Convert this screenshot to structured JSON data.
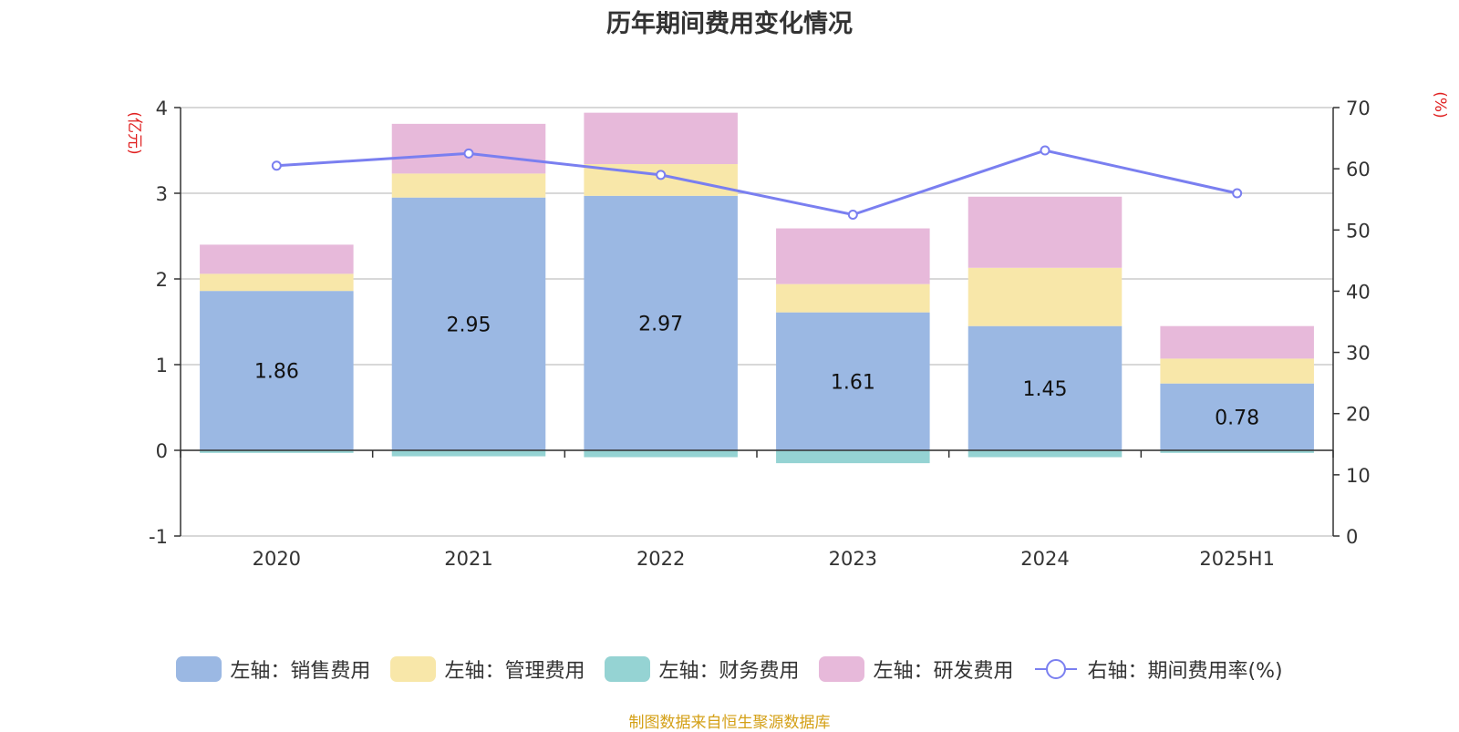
{
  "title": "历年期间费用变化情况",
  "source_note": "制图数据来自恒生聚源数据库",
  "colors": {
    "sales": "#9bb8e3",
    "admin": "#f8e7a9",
    "finance": "#95d3d3",
    "rnd": "#e7b9da",
    "rate": "#7a7ff0",
    "unit": "#e02020"
  },
  "chart_data": {
    "type": "bar",
    "stacked": true,
    "categories": [
      "2020",
      "2021",
      "2022",
      "2023",
      "2024",
      "2025H1"
    ],
    "left_axis": {
      "label": "(亿元)",
      "ylim": [
        -1,
        4
      ],
      "ticks": [
        "-1",
        "0",
        "1",
        "2",
        "3",
        "4"
      ]
    },
    "right_axis": {
      "label": "(%)",
      "ylim": [
        0,
        70
      ],
      "ticks": [
        "0",
        "10",
        "20",
        "30",
        "40",
        "50",
        "60",
        "70"
      ]
    },
    "series": [
      {
        "name": "左轴：销售费用",
        "key": "sales",
        "values": [
          1.86,
          2.95,
          2.97,
          1.61,
          1.45,
          0.78
        ],
        "labels": [
          "1.86",
          "2.95",
          "2.97",
          "1.61",
          "1.45",
          "0.78"
        ]
      },
      {
        "name": "左轴：管理费用",
        "key": "admin",
        "values": [
          0.2,
          0.28,
          0.37,
          0.33,
          0.68,
          0.29
        ]
      },
      {
        "name": "左轴：财务费用",
        "key": "finance",
        "values": [
          -0.03,
          -0.07,
          -0.08,
          -0.15,
          -0.08,
          -0.03
        ]
      },
      {
        "name": "左轴：研发费用",
        "key": "rnd",
        "values": [
          0.34,
          0.58,
          0.6,
          0.65,
          0.83,
          0.38
        ]
      },
      {
        "name": "右轴：期间费用率(%)",
        "key": "rate",
        "type": "line",
        "axis": "right",
        "values": [
          60.5,
          62.5,
          59.0,
          52.5,
          63.0,
          56.0
        ]
      }
    ],
    "grid": true,
    "legend_position": "bottom"
  }
}
